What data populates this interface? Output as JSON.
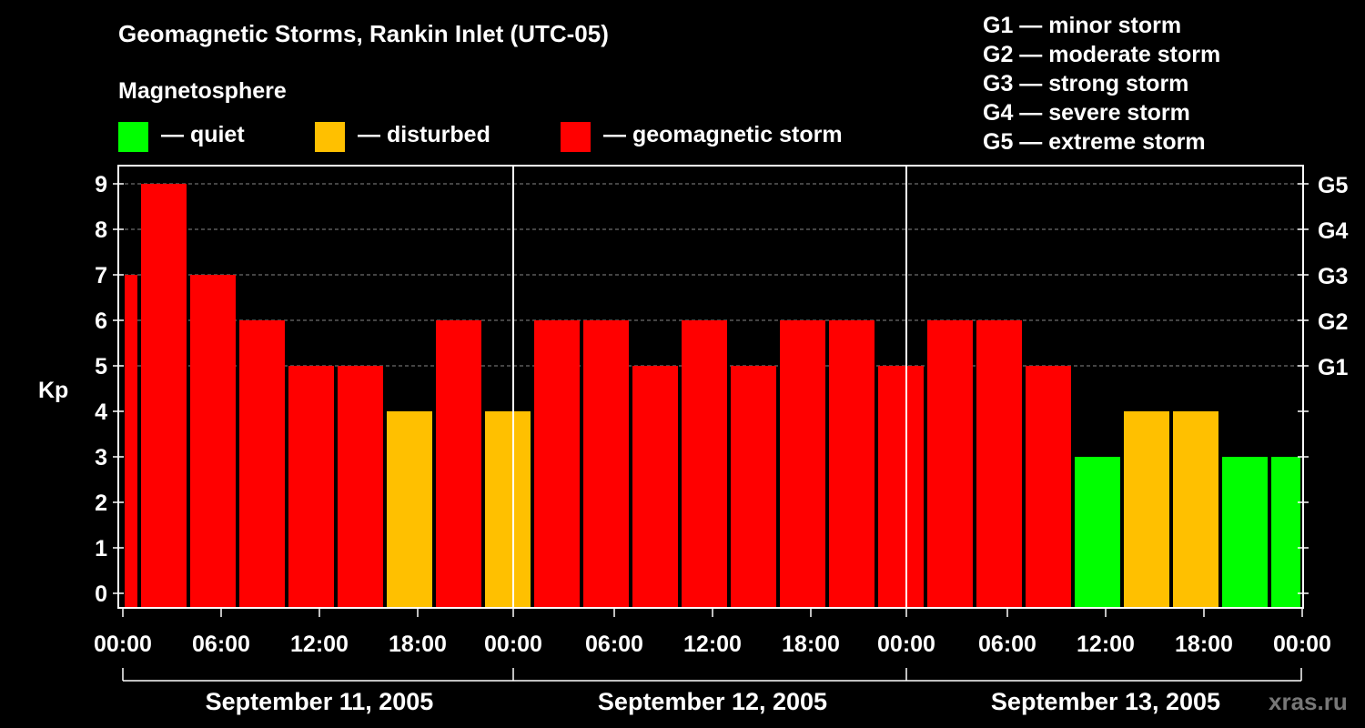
{
  "chart_data": {
    "type": "bar",
    "title": "Geomagnetic Storms, Rankin Inlet (UTC-05)",
    "ylabel": "Kp",
    "ylim": [
      0,
      9
    ],
    "yticks": [
      "0",
      "1",
      "2",
      "3",
      "4",
      "5",
      "6",
      "7",
      "8",
      "9"
    ],
    "right_ticks": [
      {
        "kp": 5,
        "label": "G1"
      },
      {
        "kp": 6,
        "label": "G2"
      },
      {
        "kp": 7,
        "label": "G3"
      },
      {
        "kp": 8,
        "label": "G4"
      },
      {
        "kp": 9,
        "label": "G5"
      }
    ],
    "xticks": [
      "00:00",
      "06:00",
      "12:00",
      "18:00",
      "00:00",
      "06:00",
      "12:00",
      "18:00",
      "00:00",
      "06:00",
      "12:00",
      "18:00",
      "00:00"
    ],
    "days": [
      "September 11, 2005",
      "September 12, 2005",
      "September 13, 2005"
    ],
    "x_unit": "hours from September 11, 2005 00:00 local",
    "bars": [
      {
        "start": 0,
        "end": 1,
        "kp": 7,
        "level": "storm"
      },
      {
        "start": 1,
        "end": 4,
        "kp": 9,
        "level": "storm"
      },
      {
        "start": 4,
        "end": 7,
        "kp": 7,
        "level": "storm"
      },
      {
        "start": 7,
        "end": 10,
        "kp": 6,
        "level": "storm"
      },
      {
        "start": 10,
        "end": 13,
        "kp": 5,
        "level": "storm"
      },
      {
        "start": 13,
        "end": 16,
        "kp": 5,
        "level": "storm"
      },
      {
        "start": 16,
        "end": 19,
        "kp": 4,
        "level": "disturbed"
      },
      {
        "start": 19,
        "end": 22,
        "kp": 6,
        "level": "storm"
      },
      {
        "start": 22,
        "end": 25,
        "kp": 4,
        "level": "disturbed"
      },
      {
        "start": 25,
        "end": 28,
        "kp": 6,
        "level": "storm"
      },
      {
        "start": 28,
        "end": 31,
        "kp": 6,
        "level": "storm"
      },
      {
        "start": 31,
        "end": 34,
        "kp": 5,
        "level": "storm"
      },
      {
        "start": 34,
        "end": 37,
        "kp": 6,
        "level": "storm"
      },
      {
        "start": 37,
        "end": 40,
        "kp": 5,
        "level": "storm"
      },
      {
        "start": 40,
        "end": 43,
        "kp": 6,
        "level": "storm"
      },
      {
        "start": 43,
        "end": 46,
        "kp": 6,
        "level": "storm"
      },
      {
        "start": 46,
        "end": 49,
        "kp": 5,
        "level": "storm"
      },
      {
        "start": 49,
        "end": 52,
        "kp": 6,
        "level": "storm"
      },
      {
        "start": 52,
        "end": 55,
        "kp": 6,
        "level": "storm"
      },
      {
        "start": 55,
        "end": 58,
        "kp": 5,
        "level": "storm"
      },
      {
        "start": 58,
        "end": 61,
        "kp": 3,
        "level": "quiet"
      },
      {
        "start": 61,
        "end": 64,
        "kp": 4,
        "level": "disturbed"
      },
      {
        "start": 64,
        "end": 67,
        "kp": 4,
        "level": "disturbed"
      },
      {
        "start": 67,
        "end": 70,
        "kp": 3,
        "level": "quiet"
      },
      {
        "start": 70,
        "end": 72,
        "kp": 3,
        "level": "quiet"
      }
    ],
    "colors": {
      "quiet": "#00ff00",
      "disturbed": "#ffc000",
      "storm": "#ff0000"
    }
  },
  "legend": {
    "heading": "Magnetosphere",
    "quiet": "— quiet",
    "disturbed": "— disturbed",
    "storm": "— geomagnetic storm"
  },
  "g_levels": [
    "G1 — minor storm",
    "G2 — moderate storm",
    "G3 — strong storm",
    "G4 — severe storm",
    "G5 — extreme storm"
  ],
  "watermark": "xras.ru"
}
